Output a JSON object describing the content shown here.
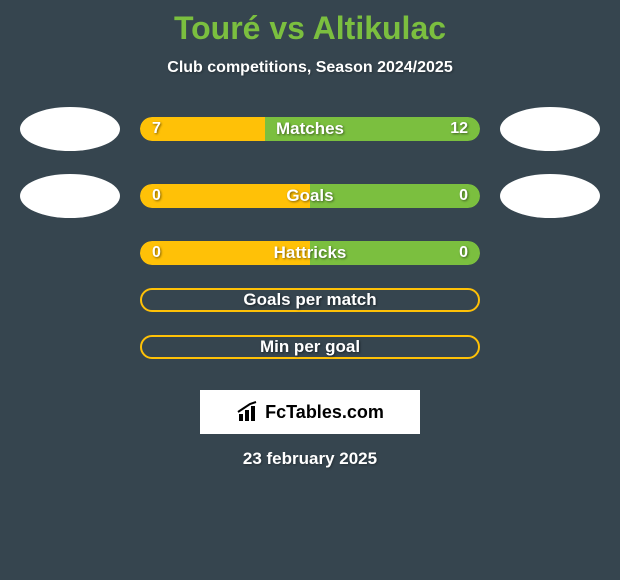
{
  "title": "Touré vs Altikulac",
  "subtitle": "Club competitions, Season 2024/2025",
  "background_color": "#36454f",
  "title_color": "#7BBF3F",
  "stats": [
    {
      "label": "Matches",
      "left_value": "7",
      "right_value": "12",
      "left_color": "#FFC107",
      "right_color": "#7BBF3F",
      "left_pct": 36.8,
      "right_pct": 63.2,
      "show_avatars": true,
      "filled": true
    },
    {
      "label": "Goals",
      "left_value": "0",
      "right_value": "0",
      "left_color": "#FFC107",
      "right_color": "#7BBF3F",
      "left_pct": 50,
      "right_pct": 50,
      "show_avatars": true,
      "filled": true
    },
    {
      "label": "Hattricks",
      "left_value": "0",
      "right_value": "0",
      "left_color": "#FFC107",
      "right_color": "#7BBF3F",
      "left_pct": 50,
      "right_pct": 50,
      "show_avatars": false,
      "filled": true
    },
    {
      "label": "Goals per match",
      "outline_color": "#FFC107",
      "show_avatars": false,
      "filled": false
    },
    {
      "label": "Min per goal",
      "outline_color": "#FFC107",
      "show_avatars": false,
      "filled": false
    }
  ],
  "logo_text": "FcTables.com",
  "date": "23 february 2025"
}
